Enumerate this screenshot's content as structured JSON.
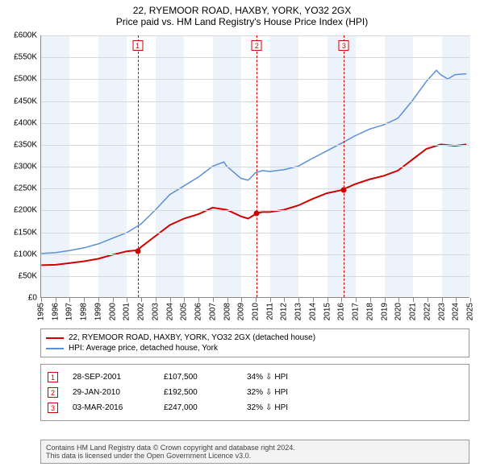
{
  "title_line1": "22, RYEMOOR ROAD, HAXBY, YORK, YO32 2GX",
  "title_line2": "Price paid vs. HM Land Registry's House Price Index (HPI)",
  "chart": {
    "type": "line",
    "background_color": "#ffffff",
    "grid_color": "#d8d8d8",
    "shaded_band_color": "#edf3fb",
    "x_start_year": 1995,
    "x_end_year": 2025,
    "x_ticks": [
      1995,
      1996,
      1997,
      1998,
      1999,
      2000,
      2001,
      2002,
      2003,
      2004,
      2005,
      2006,
      2007,
      2008,
      2009,
      2010,
      2011,
      2012,
      2013,
      2014,
      2015,
      2016,
      2017,
      2018,
      2019,
      2020,
      2021,
      2022,
      2023,
      2024,
      2025
    ],
    "ylim": [
      0,
      600000
    ],
    "ytick_step": 50000,
    "ytick_labels": [
      "£0",
      "£50K",
      "£100K",
      "£150K",
      "£200K",
      "£250K",
      "£300K",
      "£350K",
      "£400K",
      "£450K",
      "£500K",
      "£550K",
      "£600K"
    ],
    "label_fontsize": 10,
    "series": [
      {
        "name": "property",
        "label": "22, RYEMOOR ROAD, HAXBY, YORK, YO32 2GX (detached house)",
        "color": "#d00000",
        "line_width": 2,
        "points": [
          [
            1995.0,
            73000
          ],
          [
            1996.0,
            74000
          ],
          [
            1997.0,
            78000
          ],
          [
            1998.0,
            82000
          ],
          [
            1999.0,
            88000
          ],
          [
            2000.0,
            97000
          ],
          [
            2001.0,
            105000
          ],
          [
            2001.74,
            107500
          ],
          [
            2002.0,
            115000
          ],
          [
            2003.0,
            140000
          ],
          [
            2004.0,
            165000
          ],
          [
            2005.0,
            180000
          ],
          [
            2006.0,
            190000
          ],
          [
            2007.0,
            205000
          ],
          [
            2008.0,
            200000
          ],
          [
            2009.0,
            185000
          ],
          [
            2009.5,
            180000
          ],
          [
            2010.0,
            190000
          ],
          [
            2010.08,
            192500
          ],
          [
            2010.5,
            195000
          ],
          [
            2011.0,
            195000
          ],
          [
            2012.0,
            200000
          ],
          [
            2013.0,
            210000
          ],
          [
            2014.0,
            225000
          ],
          [
            2015.0,
            238000
          ],
          [
            2016.0,
            245000
          ],
          [
            2016.17,
            247000
          ],
          [
            2017.0,
            259000
          ],
          [
            2018.0,
            270000
          ],
          [
            2019.0,
            278000
          ],
          [
            2020.0,
            290000
          ],
          [
            2021.0,
            315000
          ],
          [
            2022.0,
            340000
          ],
          [
            2023.0,
            350000
          ],
          [
            2024.0,
            347000
          ],
          [
            2024.8,
            350000
          ]
        ]
      },
      {
        "name": "hpi",
        "label": "HPI: Average price, detached house, York",
        "color": "#5b8fd6",
        "line_width": 1.5,
        "points": [
          [
            1995.0,
            100000
          ],
          [
            1996.0,
            102000
          ],
          [
            1997.0,
            107000
          ],
          [
            1998.0,
            113000
          ],
          [
            1999.0,
            122000
          ],
          [
            2000.0,
            135000
          ],
          [
            2001.0,
            148000
          ],
          [
            2002.0,
            168000
          ],
          [
            2003.0,
            200000
          ],
          [
            2004.0,
            235000
          ],
          [
            2005.0,
            255000
          ],
          [
            2006.0,
            275000
          ],
          [
            2007.0,
            300000
          ],
          [
            2007.8,
            310000
          ],
          [
            2008.0,
            300000
          ],
          [
            2009.0,
            272000
          ],
          [
            2009.5,
            268000
          ],
          [
            2010.0,
            285000
          ],
          [
            2010.5,
            290000
          ],
          [
            2011.0,
            288000
          ],
          [
            2012.0,
            292000
          ],
          [
            2013.0,
            300000
          ],
          [
            2014.0,
            318000
          ],
          [
            2015.0,
            335000
          ],
          [
            2016.0,
            352000
          ],
          [
            2017.0,
            370000
          ],
          [
            2018.0,
            385000
          ],
          [
            2019.0,
            395000
          ],
          [
            2020.0,
            410000
          ],
          [
            2021.0,
            450000
          ],
          [
            2022.0,
            495000
          ],
          [
            2022.7,
            520000
          ],
          [
            2023.0,
            510000
          ],
          [
            2023.5,
            500000
          ],
          [
            2024.0,
            510000
          ],
          [
            2024.8,
            512000
          ]
        ]
      }
    ],
    "sales": [
      {
        "num": "1",
        "year": 2001.74,
        "price": 107500,
        "date": "28-SEP-2001",
        "price_label": "£107,500",
        "pct": "34%",
        "direction": "down",
        "vs": "HPI"
      },
      {
        "num": "2",
        "year": 2010.08,
        "price": 192500,
        "date": "29-JAN-2010",
        "price_label": "£192,500",
        "pct": "32%",
        "direction": "down",
        "vs": "HPI"
      },
      {
        "num": "3",
        "year": 2016.17,
        "price": 247000,
        "date": "03-MAR-2016",
        "price_label": "£247,000",
        "pct": "32%",
        "direction": "down",
        "vs": "HPI"
      }
    ]
  },
  "footer_line1": "Contains HM Land Registry data © Crown copyright and database right 2024.",
  "footer_line2": "This data is licensed under the Open Government Licence v3.0."
}
